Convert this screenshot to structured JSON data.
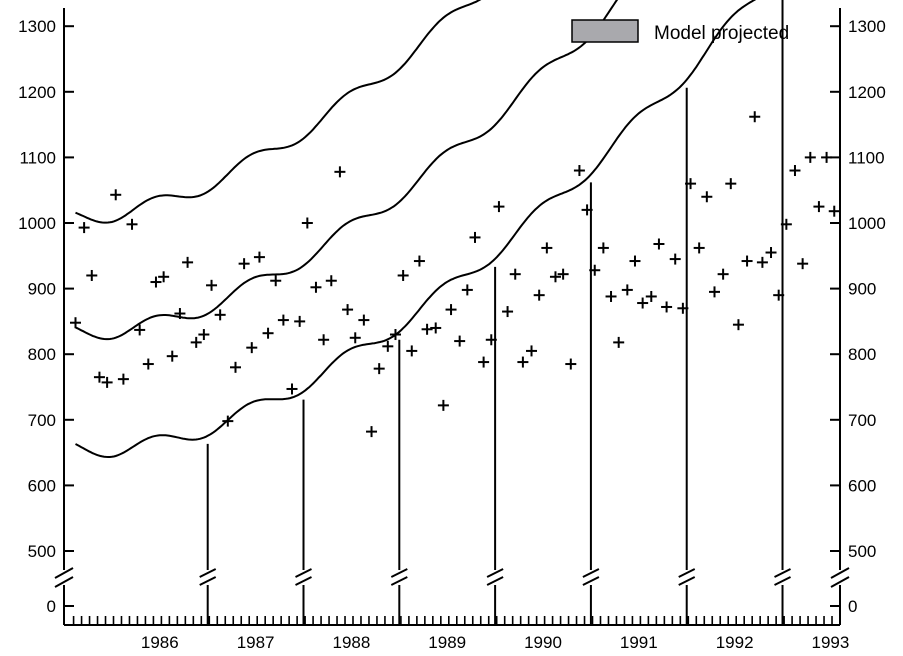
{
  "chart_data": {
    "type": "scatter",
    "legend": {
      "label": "Model projected",
      "color": "#a9a9ad",
      "placement": "top-right"
    },
    "x_ticks": [
      "1986",
      "1987",
      "1988",
      "1989",
      "1990",
      "1991",
      "1992",
      "1993"
    ],
    "y_ticks": [
      "500",
      "600",
      "700",
      "800",
      "900",
      "1000",
      "1100",
      "1200",
      "1300"
    ],
    "y_break_label": "0",
    "xlim": [
      1985.5,
      1993.6
    ],
    "ylim": [
      450,
      1330
    ],
    "projection_start": 1993.06,
    "series": [
      {
        "type": "scatter",
        "marker": "plus",
        "x": [
          1985.62,
          1985.71,
          1985.79,
          1985.87,
          1985.95,
          1986.04,
          1986.12,
          1986.21,
          1986.29,
          1986.38,
          1986.46,
          1986.54,
          1986.63,
          1986.71,
          1986.79,
          1986.88,
          1986.96,
          1987.04,
          1987.13,
          1987.21,
          1987.29,
          1987.38,
          1987.46,
          1987.54,
          1987.63,
          1987.71,
          1987.79,
          1987.88,
          1987.96,
          1988.04,
          1988.13,
          1988.21,
          1988.29,
          1988.38,
          1988.46,
          1988.54,
          1988.63,
          1988.71,
          1988.79,
          1988.88,
          1988.96,
          1989.04,
          1989.13,
          1989.21,
          1989.29,
          1989.38,
          1989.46,
          1989.54,
          1989.63,
          1989.71,
          1989.79,
          1989.88,
          1989.96,
          1990.04,
          1990.13,
          1990.21,
          1990.29,
          1990.38,
          1990.46,
          1990.54,
          1990.63,
          1990.71,
          1990.79,
          1990.88,
          1990.96,
          1991.04,
          1991.13,
          1991.21,
          1991.29,
          1991.38,
          1991.46,
          1991.54,
          1991.63,
          1991.71,
          1991.79,
          1991.88,
          1991.96,
          1992.04,
          1992.13,
          1992.21,
          1992.29,
          1992.38,
          1992.46,
          1992.54,
          1992.63,
          1992.71,
          1992.79,
          1992.88,
          1992.96,
          1993.04,
          1993.13,
          1993.21,
          1993.29,
          1993.38,
          1993.46,
          1993.54
        ],
        "y": [
          848,
          993,
          920,
          765,
          757,
          1043,
          762,
          998,
          837,
          785,
          910,
          918,
          797,
          862,
          940,
          818,
          830,
          905,
          860,
          698,
          780,
          938,
          810,
          948,
          832,
          912,
          852,
          747,
          850,
          1000,
          902,
          822,
          912,
          1078,
          868,
          825,
          852,
          682,
          778,
          812,
          830,
          920,
          805,
          942,
          838,
          840,
          722,
          868,
          820,
          898,
          978,
          788,
          822,
          1025,
          865,
          922,
          788,
          805,
          890,
          962,
          918,
          922,
          785,
          1080,
          1020,
          928,
          962,
          888,
          818,
          898,
          942,
          878,
          888,
          968,
          872,
          945,
          870,
          1060,
          962,
          1040,
          895,
          922,
          1060,
          845,
          942,
          1162,
          940,
          955,
          890,
          998,
          1080,
          938,
          1100,
          1025,
          1100,
          1018
        ]
      }
    ]
  }
}
